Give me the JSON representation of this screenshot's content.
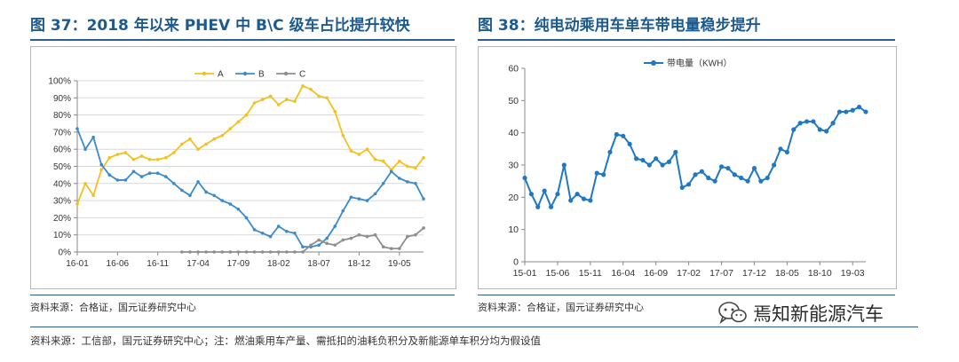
{
  "figures": [
    {
      "title": "图 37：2018 年以来 PHEV 中 B\\C 级车占比提升较快",
      "source": "资料来源：合格证，国元证券研究中心"
    },
    {
      "title": "图 38：纯电动乘用车单车带电量稳步提升",
      "source": "资料来源：合格证，国元证券研究中心"
    }
  ],
  "footnote": "资料来源：工信部，国元证券研究中心；注：燃油乘用车产量、需抵扣的油耗负积分及新能源单车积分均为假设值",
  "watermark": {
    "text": "焉知新能源汽车",
    "icon": "wechat-icon"
  },
  "chart_data": [
    {
      "type": "line",
      "title": "",
      "xlabel": "",
      "ylabel": "",
      "x_ticks": [
        "16-01",
        "16-06",
        "16-11",
        "17-04",
        "17-09",
        "18-02",
        "18-07",
        "18-12",
        "19-05"
      ],
      "x_tick_index": [
        0,
        5,
        10,
        15,
        20,
        25,
        30,
        35,
        40
      ],
      "y_ticks": [
        "0%",
        "10%",
        "20%",
        "30%",
        "40%",
        "50%",
        "60%",
        "70%",
        "80%",
        "90%",
        "100%"
      ],
      "ylim": [
        0,
        100
      ],
      "grid": true,
      "legend": "top",
      "series": [
        {
          "name": "A",
          "color": "#f2c21b",
          "values": [
            28,
            40,
            33,
            48,
            55,
            57,
            58,
            54,
            56,
            54,
            54,
            55,
            58,
            63,
            66,
            60,
            63,
            66,
            68,
            72,
            76,
            80,
            87,
            89,
            91,
            86,
            89,
            88,
            97,
            95,
            91,
            90,
            82,
            68,
            59,
            57,
            60,
            54,
            53,
            48,
            53,
            50,
            49,
            55
          ]
        },
        {
          "name": "B",
          "color": "#3a8bcd",
          "values": [
            72,
            60,
            67,
            51,
            45,
            42,
            42,
            47,
            44,
            46,
            46,
            44,
            40,
            36,
            33,
            41,
            35,
            33,
            30,
            28,
            25,
            20,
            13,
            11,
            9,
            15,
            12,
            11,
            3,
            3,
            4,
            8,
            15,
            24,
            32,
            31,
            30,
            34,
            40,
            47,
            43,
            41,
            40,
            31
          ]
        },
        {
          "name": "C",
          "color": "#8e8e8e",
          "start_index": 13,
          "values": [
            0,
            0,
            0,
            0,
            0,
            0,
            0,
            0,
            0,
            0,
            0,
            0,
            0,
            0,
            0,
            0,
            4,
            7,
            5,
            4,
            7,
            8,
            10,
            9,
            10,
            3,
            2,
            2,
            9,
            10,
            14
          ]
        }
      ]
    },
    {
      "type": "line",
      "title": "",
      "xlabel": "",
      "ylabel": "",
      "x_ticks": [
        "15-01",
        "15-06",
        "15-11",
        "16-04",
        "16-09",
        "17-02",
        "17-07",
        "17-12",
        "18-05",
        "18-10",
        "19-03"
      ],
      "x_tick_index": [
        0,
        5,
        10,
        15,
        20,
        25,
        30,
        35,
        40,
        45,
        50
      ],
      "y_ticks": [
        "0",
        "10",
        "20",
        "30",
        "40",
        "50",
        "60"
      ],
      "ylim": [
        0,
        60
      ],
      "grid": false,
      "legend": "top-left",
      "series": [
        {
          "name": "带电量（KWH）",
          "color": "#1f78c1",
          "values": [
            26,
            21,
            17,
            22,
            17,
            21,
            30,
            19,
            21,
            19.5,
            19,
            27.5,
            27,
            34,
            39.5,
            39,
            36.5,
            32,
            31.5,
            30,
            32,
            30,
            31,
            34,
            23,
            24,
            27,
            28,
            26,
            25,
            29.5,
            29,
            27,
            26,
            25,
            29,
            25,
            26,
            30,
            35,
            34,
            41,
            43,
            43.5,
            43.5,
            41,
            40.5,
            43,
            46.5,
            46.5,
            47,
            48,
            46.5
          ]
        }
      ]
    }
  ]
}
